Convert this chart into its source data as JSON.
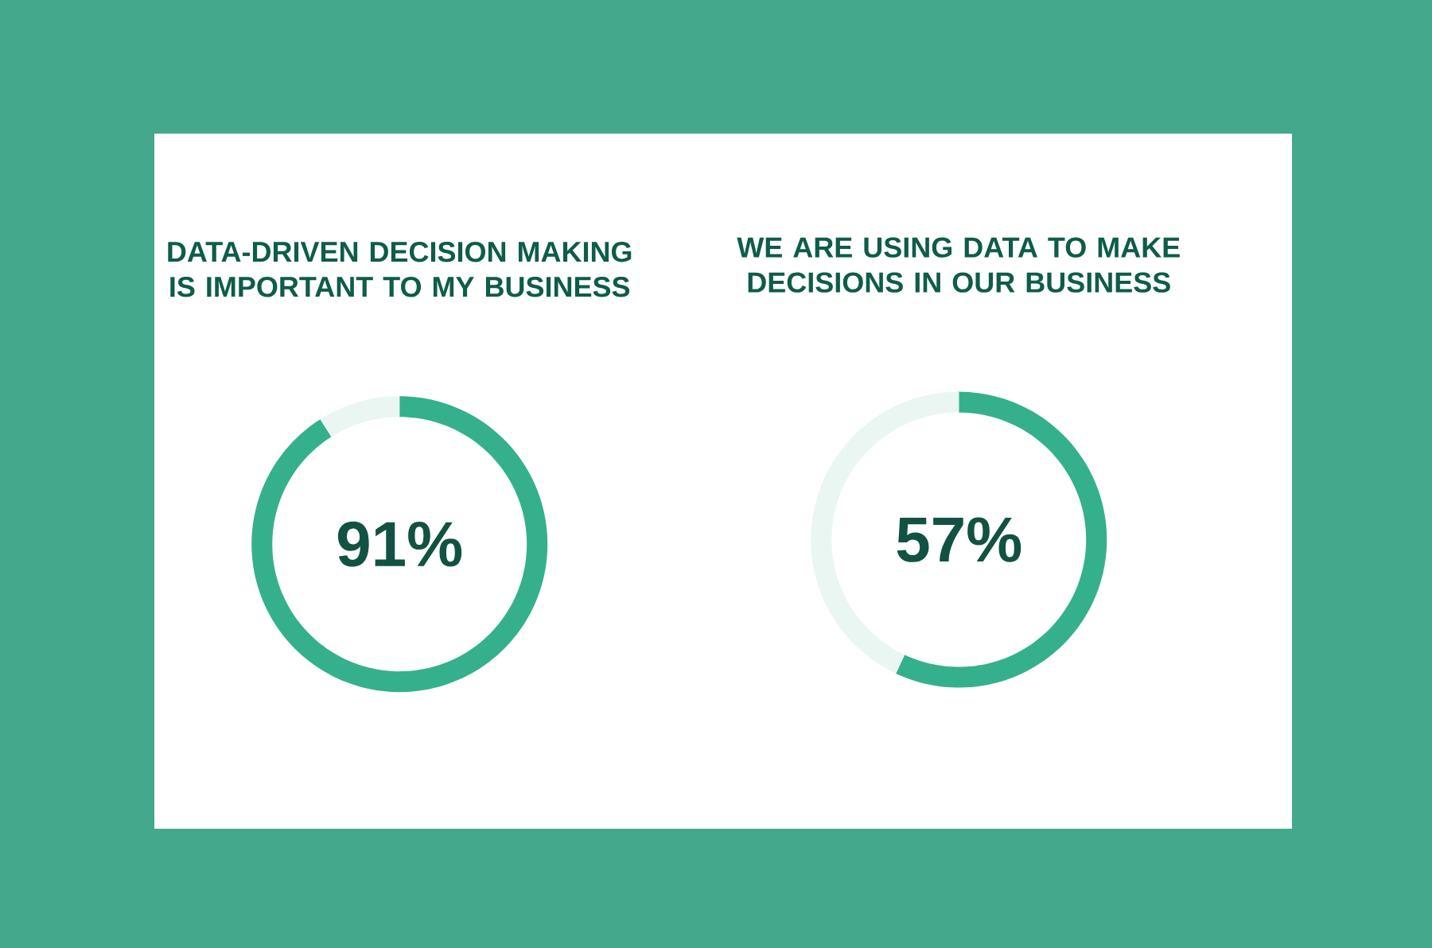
{
  "chart_data": [
    {
      "type": "donut",
      "title": "DATA-DRIVEN DECISION MAKING IS IMPORTANT TO MY BUSINESS",
      "categories": [
        null,
        null
      ],
      "values": [
        91,
        9
      ],
      "colors": [
        "#35b08c",
        "#eaf6f2"
      ],
      "value_labels": [
        "91%",
        null
      ]
    },
    {
      "type": "donut",
      "title": "WE ARE USING DATA TO MAKE DECISIONS IN OUR BUSINESS",
      "categories": [
        null,
        null
      ],
      "values": [
        57,
        43
      ],
      "colors": [
        "#35b08c",
        "#eaf6f2"
      ],
      "value_labels": [
        "57%",
        null
      ]
    }
  ]
}
